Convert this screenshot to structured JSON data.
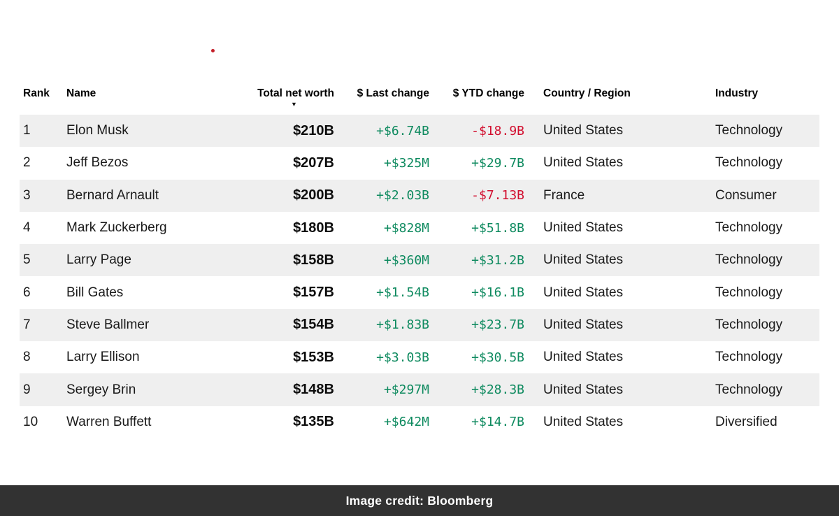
{
  "page": {
    "credit": "Image credit: Bloomberg"
  },
  "colors": {
    "positive": "#0e8a5f",
    "negative": "#d20f2f",
    "row_alt": "#efefef",
    "footer_bg": "#323232",
    "red_dot": "#c41e28"
  },
  "table": {
    "sort_icon": "▼",
    "columns": [
      {
        "key": "rank",
        "label": "Rank",
        "align": "left",
        "sorted": false
      },
      {
        "key": "name",
        "label": "Name",
        "align": "left",
        "sorted": false
      },
      {
        "key": "net_worth",
        "label": "Total net worth",
        "align": "right",
        "sorted": true
      },
      {
        "key": "last_change",
        "label": "$ Last change",
        "align": "right",
        "sorted": false
      },
      {
        "key": "ytd_change",
        "label": "$ YTD change",
        "align": "right",
        "sorted": false
      },
      {
        "key": "country",
        "label": "Country / Region",
        "align": "left",
        "sorted": false
      },
      {
        "key": "industry",
        "label": "Industry",
        "align": "left",
        "sorted": false
      }
    ],
    "rows": [
      {
        "rank": "1",
        "name": "Elon Musk",
        "net_worth": "$210B",
        "last_change": "+$6.74B",
        "last_change_dir": "up",
        "ytd_change": "-$18.9B",
        "ytd_change_dir": "down",
        "country": "United States",
        "industry": "Technology"
      },
      {
        "rank": "2",
        "name": "Jeff Bezos",
        "net_worth": "$207B",
        "last_change": "+$325M",
        "last_change_dir": "up",
        "ytd_change": "+$29.7B",
        "ytd_change_dir": "up",
        "country": "United States",
        "industry": "Technology"
      },
      {
        "rank": "3",
        "name": "Bernard Arnault",
        "net_worth": "$200B",
        "last_change": "+$2.03B",
        "last_change_dir": "up",
        "ytd_change": "-$7.13B",
        "ytd_change_dir": "down",
        "country": "France",
        "industry": "Consumer"
      },
      {
        "rank": "4",
        "name": "Mark Zuckerberg",
        "net_worth": "$180B",
        "last_change": "+$828M",
        "last_change_dir": "up",
        "ytd_change": "+$51.8B",
        "ytd_change_dir": "up",
        "country": "United States",
        "industry": "Technology"
      },
      {
        "rank": "5",
        "name": "Larry Page",
        "net_worth": "$158B",
        "last_change": "+$360M",
        "last_change_dir": "up",
        "ytd_change": "+$31.2B",
        "ytd_change_dir": "up",
        "country": "United States",
        "industry": "Technology"
      },
      {
        "rank": "6",
        "name": "Bill Gates",
        "net_worth": "$157B",
        "last_change": "+$1.54B",
        "last_change_dir": "up",
        "ytd_change": "+$16.1B",
        "ytd_change_dir": "up",
        "country": "United States",
        "industry": "Technology"
      },
      {
        "rank": "7",
        "name": "Steve Ballmer",
        "net_worth": "$154B",
        "last_change": "+$1.83B",
        "last_change_dir": "up",
        "ytd_change": "+$23.7B",
        "ytd_change_dir": "up",
        "country": "United States",
        "industry": "Technology"
      },
      {
        "rank": "8",
        "name": "Larry Ellison",
        "net_worth": "$153B",
        "last_change": "+$3.03B",
        "last_change_dir": "up",
        "ytd_change": "+$30.5B",
        "ytd_change_dir": "up",
        "country": "United States",
        "industry": "Technology"
      },
      {
        "rank": "9",
        "name": "Sergey Brin",
        "net_worth": "$148B",
        "last_change": "+$297M",
        "last_change_dir": "up",
        "ytd_change": "+$28.3B",
        "ytd_change_dir": "up",
        "country": "United States",
        "industry": "Technology"
      },
      {
        "rank": "10",
        "name": "Warren Buffett",
        "net_worth": "$135B",
        "last_change": "+$642M",
        "last_change_dir": "up",
        "ytd_change": "+$14.7B",
        "ytd_change_dir": "up",
        "country": "United States",
        "industry": "Diversified"
      }
    ]
  }
}
